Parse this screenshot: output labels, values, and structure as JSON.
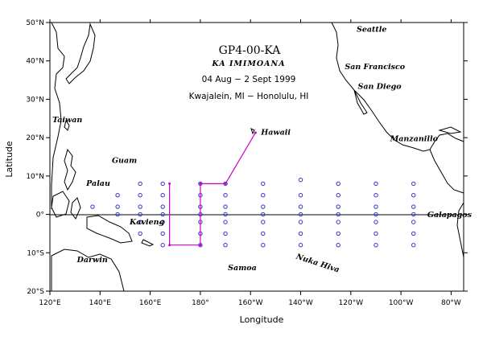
{
  "title": {
    "cruise": "GP4-00-KA",
    "ship": "KA IMIMOANA",
    "dates": "04 Aug − 2 Sept 1999",
    "route": "Kwajalein, MI − Honolulu, HI"
  },
  "axes": {
    "xlabel": "Longitude",
    "ylabel": "Latitude",
    "lon_range": [
      120,
      285
    ],
    "lat_range": [
      -20,
      50
    ],
    "x_ticks": [
      {
        "lon": 120,
        "label": "120°E"
      },
      {
        "lon": 140,
        "label": "140°E"
      },
      {
        "lon": 160,
        "label": "160°E"
      },
      {
        "lon": 180,
        "label": "180°"
      },
      {
        "lon": 200,
        "label": "160°W"
      },
      {
        "lon": 220,
        "label": "140°W"
      },
      {
        "lon": 240,
        "label": "120°W"
      },
      {
        "lon": 260,
        "label": "100°W"
      },
      {
        "lon": 280,
        "label": "80°W"
      }
    ],
    "y_ticks": [
      {
        "lat": -20,
        "label": "20°S"
      },
      {
        "lat": -10,
        "label": "10°S"
      },
      {
        "lat": 0,
        "label": "0°"
      },
      {
        "lat": 10,
        "label": "10°N"
      },
      {
        "lat": 20,
        "label": "20°N"
      },
      {
        "lat": 30,
        "label": "30°N"
      },
      {
        "lat": 40,
        "label": "40°N"
      },
      {
        "lat": 50,
        "label": "50°N"
      }
    ]
  },
  "places": [
    {
      "name": "Seattle",
      "lon": 242.3,
      "lat": 47.6
    },
    {
      "name": "San Francisco",
      "lon": 237.6,
      "lat": 37.8
    },
    {
      "name": "San Diego",
      "lon": 242.8,
      "lat": 32.7
    },
    {
      "name": "Manzanillo",
      "lon": 255.7,
      "lat": 19.1
    },
    {
      "name": "Taiwan",
      "lon": 121,
      "lat": 24
    },
    {
      "name": "Hawaii",
      "lon": 204.2,
      "lat": 20.8
    },
    {
      "name": "Guam",
      "lon": 144.7,
      "lat": 13.4
    },
    {
      "name": "Palau",
      "lon": 134.5,
      "lat": 7.5
    },
    {
      "name": "Kavieng",
      "lon": 151.8,
      "lat": -2.6
    },
    {
      "name": "Galapagos",
      "lon": 270.5,
      "lat": -0.7
    },
    {
      "name": "Nuka Hiva",
      "lon": 218,
      "lat": -11.5
    },
    {
      "name": "Darwin",
      "lon": 130.8,
      "lat": -12.5
    },
    {
      "name": "Samoa",
      "lon": 191,
      "lat": -14.5
    }
  ],
  "chart_data": {
    "type": "map",
    "cruise_track": [
      {
        "lon": 167.7,
        "lat": 8.0
      },
      {
        "lon": 167.7,
        "lat": -8.0
      },
      {
        "lon": 180.0,
        "lat": -8.0
      },
      {
        "lon": 180.0,
        "lat": 8.0
      },
      {
        "lon": 190.0,
        "lat": 8.0
      },
      {
        "lon": 202.0,
        "lat": 21.3
      }
    ],
    "track_color": "#cc00cc",
    "mooring_color": "#3333cc",
    "mooring_columns": [
      {
        "lon": 137,
        "lats": [
          2
        ]
      },
      {
        "lon": 147,
        "lats": [
          5,
          2,
          0
        ]
      },
      {
        "lon": 156,
        "lats": [
          8,
          5,
          2,
          0,
          -2,
          -5
        ]
      },
      {
        "lon": 165,
        "lats": [
          8,
          5,
          2,
          0,
          -2,
          -5,
          -8
        ]
      },
      {
        "lon": 180,
        "lats": [
          8,
          5,
          2,
          0,
          -2,
          -5,
          -8
        ]
      },
      {
        "lon": 190,
        "lats": [
          8,
          5,
          2,
          0,
          -2,
          -5,
          -8
        ]
      },
      {
        "lon": 205,
        "lats": [
          8,
          5,
          2,
          0,
          -2,
          -5,
          -8
        ]
      },
      {
        "lon": 220,
        "lats": [
          9,
          5,
          2,
          0,
          -2,
          -5,
          -8
        ]
      },
      {
        "lon": 235,
        "lats": [
          8,
          5,
          2,
          0,
          -2,
          -5,
          -8
        ]
      },
      {
        "lon": 250,
        "lats": [
          8,
          5,
          2,
          0,
          -2,
          -5,
          -8
        ]
      },
      {
        "lon": 265,
        "lats": [
          8,
          5,
          2,
          0,
          -2,
          -5,
          -8
        ]
      }
    ],
    "equator_line": true,
    "grid": false
  }
}
